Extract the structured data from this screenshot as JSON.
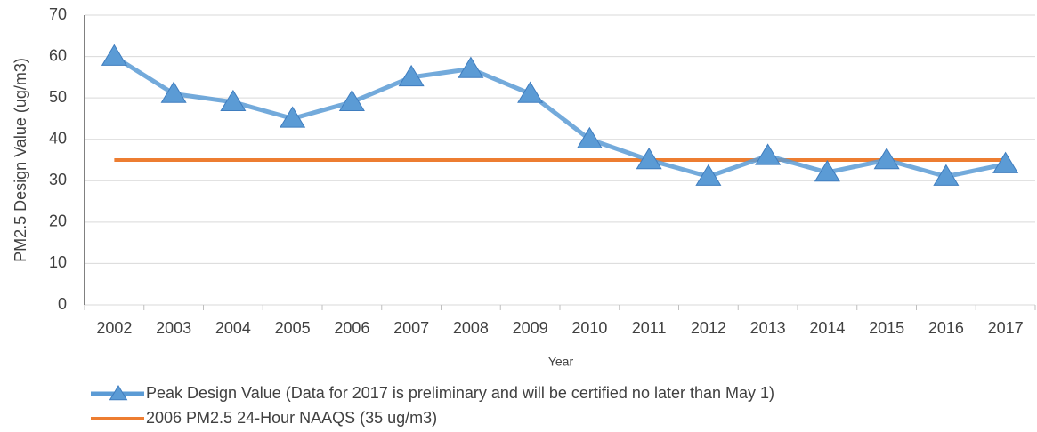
{
  "chart_data": {
    "type": "line",
    "x_label": "Year",
    "y_label": "PM2.5 Design Value (ug/m3)",
    "categories": [
      "2002",
      "2003",
      "2004",
      "2005",
      "2006",
      "2007",
      "2008",
      "2009",
      "2010",
      "2011",
      "2012",
      "2013",
      "2014",
      "2015",
      "2016",
      "2017"
    ],
    "series": [
      {
        "name": "Peak Design Value (Data for 2017 is preliminary and will be certified no later than May 1)",
        "color": "#5b9bd5",
        "marker": "triangle",
        "values": [
          60,
          51,
          49,
          45,
          49,
          55,
          57,
          51,
          40,
          35,
          31,
          36,
          32,
          35,
          31,
          34
        ]
      },
      {
        "name": "2006 PM2.5 24-Hour NAAQS (35 ug/m3)",
        "color": "#ed7d31",
        "values": [
          35,
          35,
          35,
          35,
          35,
          35,
          35,
          35,
          35,
          35,
          35,
          35,
          35,
          35,
          35,
          35
        ]
      }
    ],
    "ylim": [
      0,
      70
    ],
    "yticks": [
      0,
      10,
      20,
      30,
      40,
      50,
      60,
      70
    ],
    "grid": true,
    "legend": "bottom"
  }
}
